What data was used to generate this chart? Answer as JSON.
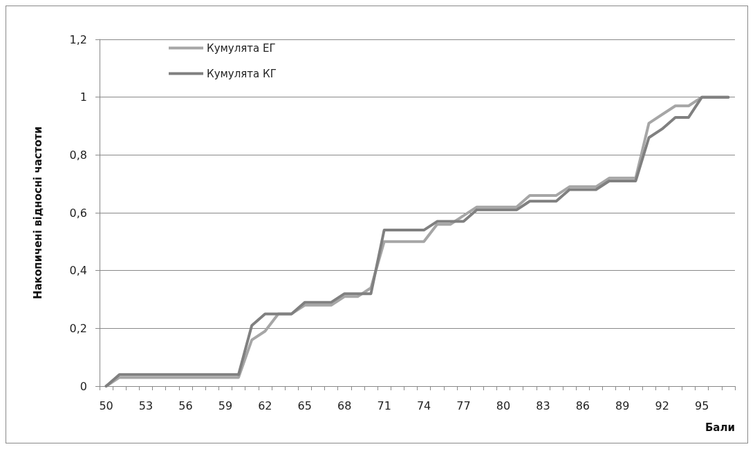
{
  "chart_data": {
    "type": "line",
    "xlabel": "Бали",
    "ylabel": "Накопичені відносні частоти",
    "categories": [
      "50",
      null,
      null,
      "53",
      null,
      null,
      "56",
      null,
      null,
      "59",
      null,
      null,
      "62",
      null,
      null,
      "65",
      null,
      null,
      "68",
      null,
      null,
      "71",
      null,
      null,
      "74",
      null,
      null,
      "77",
      null,
      null,
      "80",
      null,
      null,
      "83",
      null,
      null,
      "86",
      null,
      null,
      "89",
      null,
      null,
      "92",
      null,
      null,
      "95",
      null,
      null
    ],
    "series": [
      {
        "name": "Кумулята ЕГ",
        "color": "#a6a6a6",
        "values": [
          0,
          0.03,
          0.03,
          0.03,
          0.03,
          0.03,
          0.03,
          0.03,
          0.03,
          0.03,
          0.03,
          0.16,
          0.19,
          0.25,
          0.25,
          0.28,
          0.28,
          0.28,
          0.31,
          0.31,
          0.34,
          0.5,
          0.5,
          0.5,
          0.5,
          0.56,
          0.56,
          0.59,
          0.62,
          0.62,
          0.62,
          0.62,
          0.66,
          0.66,
          0.66,
          0.69,
          0.69,
          0.69,
          0.72,
          0.72,
          0.72,
          0.91,
          0.94,
          0.97,
          0.97,
          1,
          1,
          1
        ]
      },
      {
        "name": "Кумулята КГ",
        "color": "#808080",
        "values": [
          0,
          0.04,
          0.04,
          0.04,
          0.04,
          0.04,
          0.04,
          0.04,
          0.04,
          0.04,
          0.04,
          0.21,
          0.25,
          0.25,
          0.25,
          0.29,
          0.29,
          0.29,
          0.32,
          0.32,
          0.32,
          0.54,
          0.54,
          0.54,
          0.54,
          0.57,
          0.57,
          0.57,
          0.61,
          0.61,
          0.61,
          0.61,
          0.64,
          0.64,
          0.64,
          0.68,
          0.68,
          0.68,
          0.71,
          0.71,
          0.71,
          0.86,
          0.89,
          0.93,
          0.93,
          1,
          1,
          1
        ]
      }
    ],
    "ylim": [
      0,
      1.2
    ],
    "yticks": [
      0,
      {
        "value": 0.2,
        "label": "0,2"
      },
      {
        "value": 0.4,
        "label": "0,4"
      },
      {
        "value": 0.6,
        "label": "0,6"
      },
      {
        "value": 0.8,
        "label": "0,8"
      },
      1,
      {
        "value": 1.2,
        "label": "1,2"
      }
    ],
    "grid": "y",
    "legend": "top left",
    "marker": "none",
    "line_style": "solid"
  }
}
